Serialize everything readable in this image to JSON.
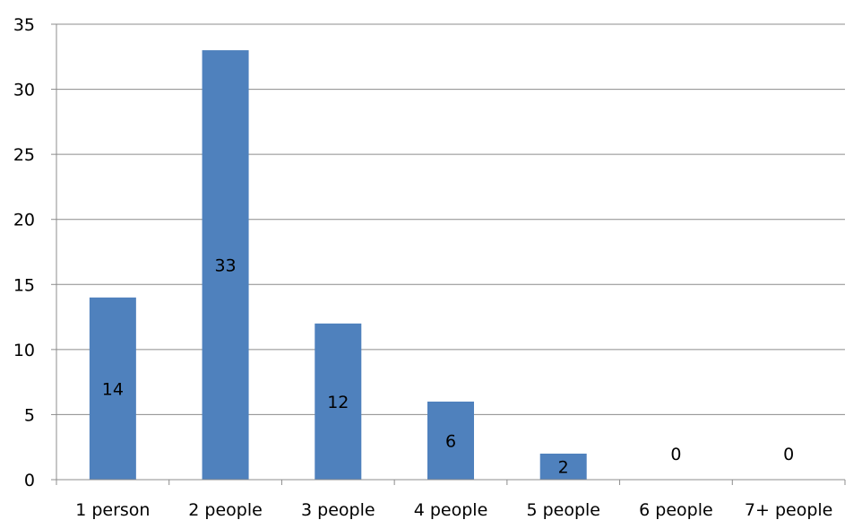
{
  "chart_data": {
    "type": "bar",
    "categories": [
      "1 person",
      "2 people",
      "3 people",
      "4 people",
      "5 people",
      "6 people",
      "7+ people"
    ],
    "values": [
      14,
      33,
      12,
      6,
      2,
      0,
      0
    ],
    "ylim": [
      0,
      35
    ],
    "yticks": [
      0,
      5,
      10,
      15,
      20,
      25,
      30,
      35
    ],
    "grid": true,
    "legend": "none",
    "bar_color": "#4f81bd"
  }
}
